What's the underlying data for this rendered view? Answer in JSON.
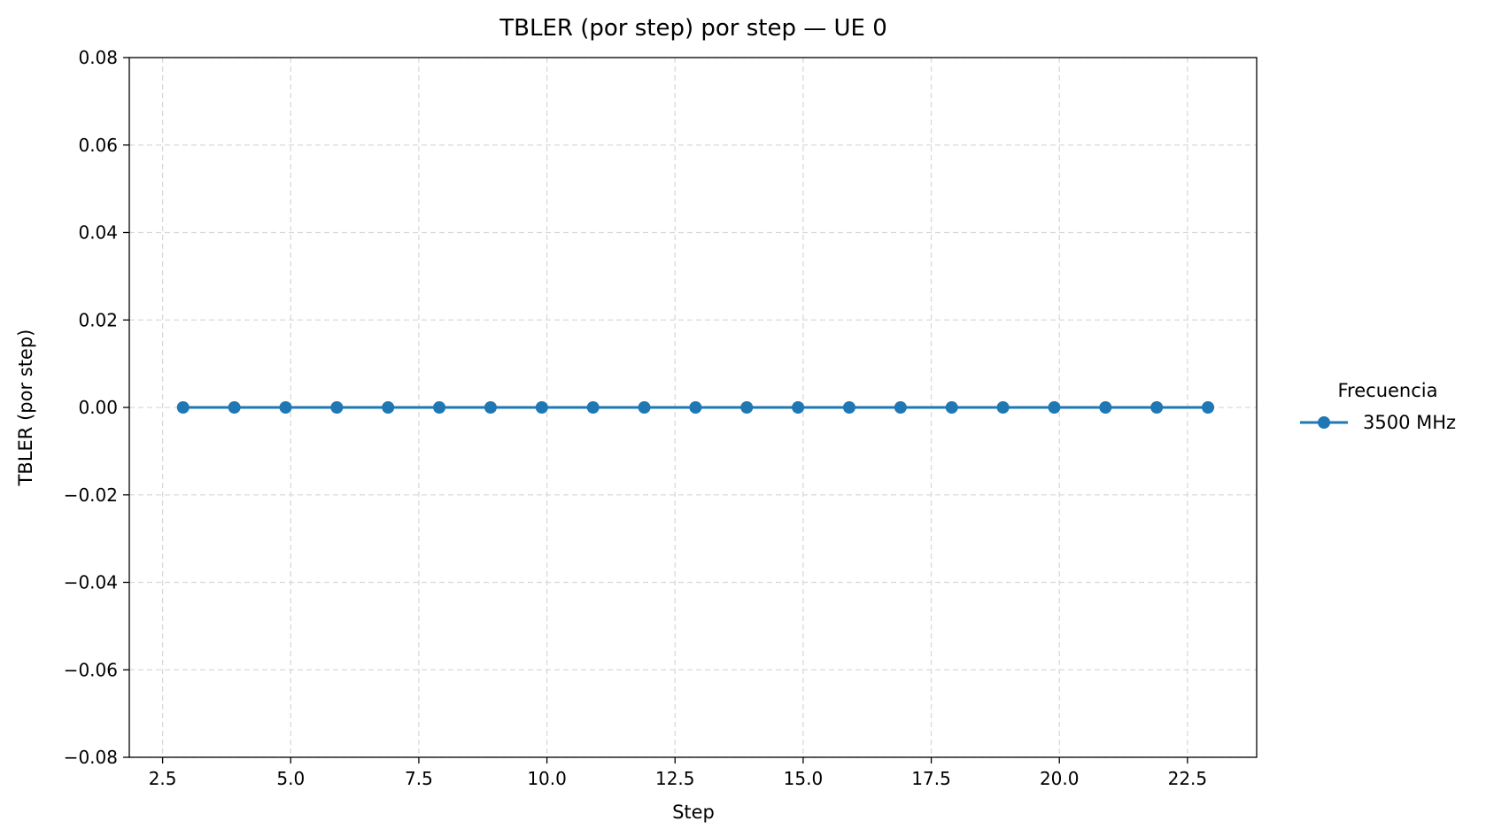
{
  "chart_data": {
    "type": "line",
    "title": "TBLER (por step) por step — UE 0",
    "xlabel": "Step",
    "ylabel": "TBLER (por step)",
    "xlim": [
      1.85,
      23.85
    ],
    "ylim": [
      -0.08,
      0.08
    ],
    "xticks": [
      2.5,
      5.0,
      7.5,
      10.0,
      12.5,
      15.0,
      17.5,
      20.0,
      22.5
    ],
    "xtick_labels": [
      "2.5",
      "5.0",
      "7.5",
      "10.0",
      "12.5",
      "15.0",
      "17.5",
      "20.0",
      "22.5"
    ],
    "yticks": [
      -0.08,
      -0.06,
      -0.04,
      -0.02,
      0.0,
      0.02,
      0.04,
      0.06,
      0.08
    ],
    "ytick_labels": [
      "−0.08",
      "−0.06",
      "−0.04",
      "−0.02",
      "0.00",
      "0.02",
      "0.04",
      "0.06",
      "0.08"
    ],
    "grid": true,
    "legend": {
      "title": "Frecuencia",
      "placement": "outside-right"
    },
    "series": [
      {
        "name": "3500 MHz",
        "color": "#1f77b4",
        "marker": "circle",
        "x": [
          2.9,
          3.9,
          4.9,
          5.9,
          6.9,
          7.9,
          8.9,
          9.9,
          10.9,
          11.9,
          12.9,
          13.9,
          14.9,
          15.9,
          16.9,
          17.9,
          18.9,
          19.9,
          20.9,
          21.9,
          22.9
        ],
        "y": [
          0,
          0,
          0,
          0,
          0,
          0,
          0,
          0,
          0,
          0,
          0,
          0,
          0,
          0,
          0,
          0,
          0,
          0,
          0,
          0,
          0
        ]
      }
    ]
  }
}
